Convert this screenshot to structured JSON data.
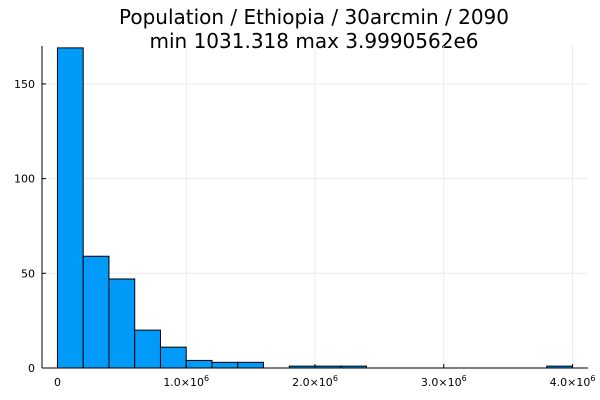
{
  "chart_data": {
    "type": "histogram",
    "title": [
      "Population / Ethiopia / 30arcmin / 2090",
      "min 1031.318  max 3.9990562e6"
    ],
    "xlabel": "",
    "ylabel": "",
    "bin_width": 200000,
    "bins": [
      {
        "start": 0,
        "end": 200000,
        "count": 169
      },
      {
        "start": 200000,
        "end": 400000,
        "count": 59
      },
      {
        "start": 400000,
        "end": 600000,
        "count": 47
      },
      {
        "start": 600000,
        "end": 800000,
        "count": 20
      },
      {
        "start": 800000,
        "end": 1000000,
        "count": 11
      },
      {
        "start": 1000000,
        "end": 1200000,
        "count": 4
      },
      {
        "start": 1200000,
        "end": 1400000,
        "count": 3
      },
      {
        "start": 1400000,
        "end": 1600000,
        "count": 3
      },
      {
        "start": 1800000,
        "end": 2000000,
        "count": 1
      },
      {
        "start": 2000000,
        "end": 2200000,
        "count": 1
      },
      {
        "start": 2200000,
        "end": 2400000,
        "count": 1
      },
      {
        "start": 3800000,
        "end": 4000000,
        "count": 1
      }
    ],
    "xlim": [
      -120000,
      4120000
    ],
    "ylim": [
      0,
      170
    ],
    "x_ticks": [
      {
        "value": 0,
        "label": "0",
        "exp": ""
      },
      {
        "value": 1000000,
        "label": "1.0×10",
        "exp": "6"
      },
      {
        "value": 2000000,
        "label": "2.0×10",
        "exp": "6"
      },
      {
        "value": 3000000,
        "label": "3.0×10",
        "exp": "6"
      },
      {
        "value": 4000000,
        "label": "4.0×10",
        "exp": "6"
      }
    ],
    "y_ticks": [
      {
        "value": 0,
        "label": "0"
      },
      {
        "value": 50,
        "label": "50"
      },
      {
        "value": 100,
        "label": "100"
      },
      {
        "value": 150,
        "label": "150"
      }
    ],
    "grid": true,
    "legend": "none",
    "colors": {
      "bar_fill": "#009af9",
      "bar_stroke": "#000000",
      "grid": "#ececec",
      "axis": "#000000"
    }
  }
}
